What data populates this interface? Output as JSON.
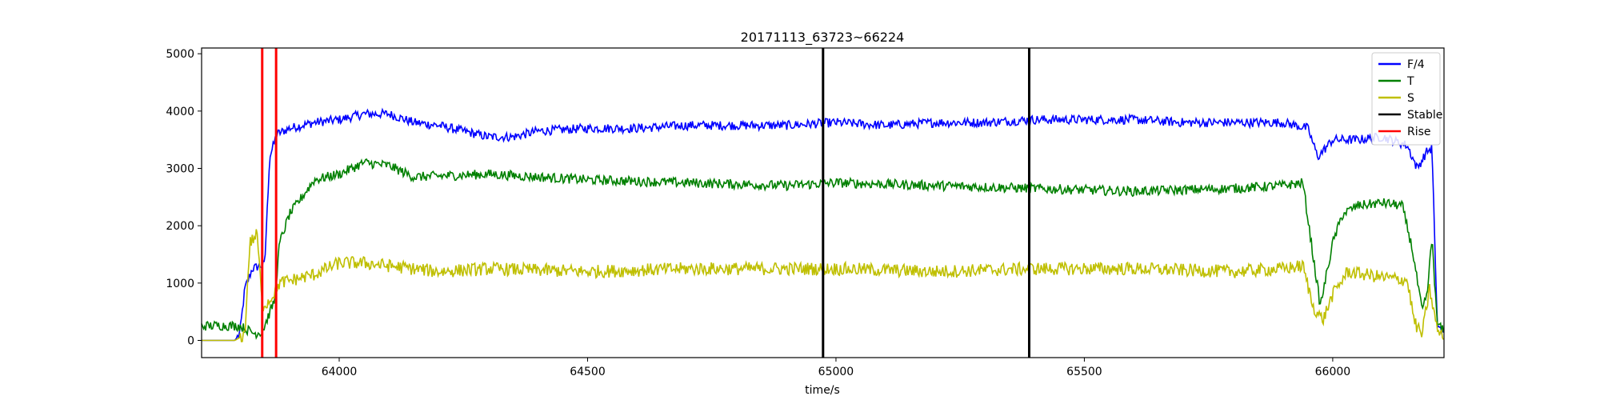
{
  "chart_data": {
    "type": "line",
    "title": "20171113_63723~66224",
    "xlabel": "time/s",
    "ylabel": "",
    "xlim": [
      63723,
      66224
    ],
    "ylim": [
      -300,
      5100
    ],
    "xticks": [
      64000,
      64500,
      65000,
      65500,
      66000
    ],
    "yticks": [
      0,
      1000,
      2000,
      3000,
      4000,
      5000
    ],
    "grid": false,
    "legend_position": "top-right",
    "series": [
      {
        "name": "F/4",
        "color": "#0000ff",
        "points": [
          [
            63723,
            0
          ],
          [
            63790,
            0
          ],
          [
            63800,
            120
          ],
          [
            63810,
            900
          ],
          [
            63825,
            1250
          ],
          [
            63840,
            1300
          ],
          [
            63850,
            1320
          ],
          [
            63860,
            3200
          ],
          [
            63875,
            3600
          ],
          [
            63900,
            3700
          ],
          [
            63950,
            3800
          ],
          [
            64000,
            3850
          ],
          [
            64050,
            3950
          ],
          [
            64100,
            3950
          ],
          [
            64150,
            3800
          ],
          [
            64200,
            3750
          ],
          [
            64250,
            3650
          ],
          [
            64300,
            3550
          ],
          [
            64350,
            3550
          ],
          [
            64400,
            3650
          ],
          [
            64500,
            3700
          ],
          [
            64600,
            3700
          ],
          [
            64700,
            3750
          ],
          [
            64800,
            3750
          ],
          [
            64900,
            3750
          ],
          [
            65000,
            3800
          ],
          [
            65100,
            3750
          ],
          [
            65200,
            3800
          ],
          [
            65300,
            3800
          ],
          [
            65400,
            3850
          ],
          [
            65500,
            3850
          ],
          [
            65600,
            3850
          ],
          [
            65700,
            3800
          ],
          [
            65800,
            3800
          ],
          [
            65900,
            3800
          ],
          [
            65950,
            3700
          ],
          [
            65970,
            3200
          ],
          [
            66000,
            3500
          ],
          [
            66050,
            3500
          ],
          [
            66100,
            3550
          ],
          [
            66150,
            3400
          ],
          [
            66170,
            3000
          ],
          [
            66190,
            3300
          ],
          [
            66200,
            3350
          ],
          [
            66210,
            300
          ],
          [
            66224,
            100
          ]
        ],
        "noise": 160
      },
      {
        "name": "T",
        "color": "#008000",
        "points": [
          [
            63723,
            250
          ],
          [
            63760,
            260
          ],
          [
            63800,
            250
          ],
          [
            63830,
            120
          ],
          [
            63845,
            150
          ],
          [
            63870,
            700
          ],
          [
            63880,
            1700
          ],
          [
            63900,
            2200
          ],
          [
            63950,
            2800
          ],
          [
            64000,
            2900
          ],
          [
            64050,
            3100
          ],
          [
            64100,
            3050
          ],
          [
            64150,
            2850
          ],
          [
            64300,
            2900
          ],
          [
            64500,
            2800
          ],
          [
            64700,
            2750
          ],
          [
            64900,
            2700
          ],
          [
            65000,
            2750
          ],
          [
            65200,
            2700
          ],
          [
            65400,
            2650
          ],
          [
            65600,
            2600
          ],
          [
            65800,
            2650
          ],
          [
            65900,
            2700
          ],
          [
            65940,
            2750
          ],
          [
            65960,
            1500
          ],
          [
            65975,
            600
          ],
          [
            66000,
            1700
          ],
          [
            66020,
            2200
          ],
          [
            66050,
            2350
          ],
          [
            66100,
            2400
          ],
          [
            66140,
            2350
          ],
          [
            66160,
            1600
          ],
          [
            66180,
            500
          ],
          [
            66190,
            800
          ],
          [
            66200,
            1800
          ],
          [
            66210,
            300
          ],
          [
            66224,
            150
          ]
        ],
        "noise": 170
      },
      {
        "name": "S",
        "color": "#bfbf00",
        "points": [
          [
            63723,
            0
          ],
          [
            63790,
            0
          ],
          [
            63810,
            100
          ],
          [
            63820,
            1700
          ],
          [
            63835,
            1850
          ],
          [
            63845,
            600
          ],
          [
            63860,
            700
          ],
          [
            63880,
            1000
          ],
          [
            63950,
            1150
          ],
          [
            64000,
            1350
          ],
          [
            64050,
            1350
          ],
          [
            64100,
            1300
          ],
          [
            64200,
            1200
          ],
          [
            64300,
            1250
          ],
          [
            64500,
            1200
          ],
          [
            64700,
            1250
          ],
          [
            64900,
            1250
          ],
          [
            65000,
            1250
          ],
          [
            65200,
            1200
          ],
          [
            65400,
            1250
          ],
          [
            65600,
            1250
          ],
          [
            65800,
            1200
          ],
          [
            65900,
            1250
          ],
          [
            65940,
            1300
          ],
          [
            65960,
            600
          ],
          [
            65980,
            350
          ],
          [
            66000,
            800
          ],
          [
            66030,
            1200
          ],
          [
            66100,
            1100
          ],
          [
            66150,
            1050
          ],
          [
            66165,
            300
          ],
          [
            66180,
            100
          ],
          [
            66195,
            900
          ],
          [
            66210,
            200
          ],
          [
            66224,
            0
          ]
        ],
        "noise": 230
      },
      {
        "name": "Stable",
        "color": "#000000",
        "vlines": [
          64974,
          65389
        ]
      },
      {
        "name": "Rise",
        "color": "#ff0000",
        "vlines": [
          63845,
          63873
        ]
      }
    ]
  }
}
